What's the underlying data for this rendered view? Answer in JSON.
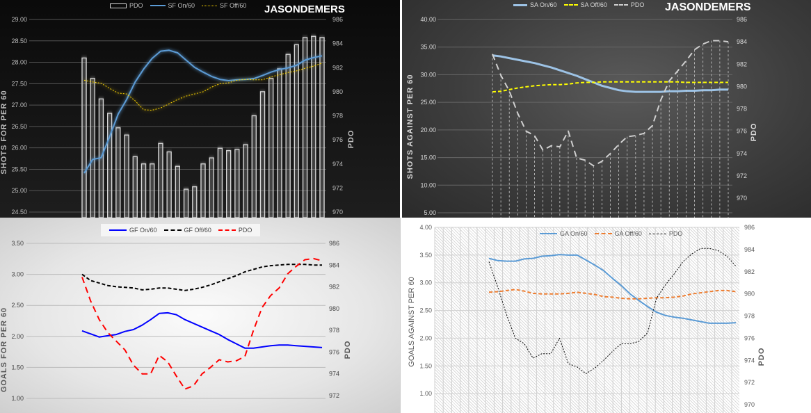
{
  "watermark": "JASONDEMERS",
  "chart_data": [
    {
      "type": "bar+line",
      "title": "",
      "ylabel": "SHOTS FOR PER 60",
      "y2label": "PDO",
      "ylim": [
        24.5,
        29
      ],
      "y2lim": [
        970,
        986
      ],
      "yticks": [
        "24.50",
        "25.00",
        "25.50",
        "26.00",
        "26.50",
        "27.00",
        "27.50",
        "28.00",
        "28.50",
        "29.00"
      ],
      "y2ticks": [
        "970",
        "972",
        "974",
        "976",
        "978",
        "980",
        "982",
        "984",
        "986"
      ],
      "legend": [
        "PDO",
        "SF On/60",
        "SF Off/60"
      ],
      "colors": {
        "pdo": "#d9d9d9",
        "on": "#5b9bd5",
        "off": "#ffd700"
      },
      "series": [
        {
          "name": "PDO",
          "axis": "right",
          "style": "bar",
          "values": [
            982.8,
            981.1,
            979.4,
            978.2,
            977.0,
            976.4,
            974.6,
            974.0,
            974.0,
            975.7,
            975.0,
            973.8,
            971.9,
            972.1,
            974.0,
            974.5,
            975.3,
            975.1,
            975.2,
            975.6,
            978.0,
            980.0,
            981.1,
            981.9,
            983.1,
            983.9,
            984.5,
            984.6,
            984.5
          ]
        },
        {
          "name": "SF On/60",
          "axis": "left",
          "style": "solid",
          "values": [
            25.41,
            25.73,
            25.77,
            26.26,
            26.79,
            27.13,
            27.54,
            27.84,
            28.09,
            28.26,
            28.28,
            28.22,
            28.05,
            27.88,
            27.77,
            27.67,
            27.6,
            27.57,
            27.59,
            27.6,
            27.62,
            27.69,
            27.77,
            27.83,
            27.87,
            27.93,
            28.05,
            28.11,
            28.15
          ]
        },
        {
          "name": "SF Off/60",
          "axis": "left",
          "style": "dotted",
          "values": [
            27.58,
            27.54,
            27.51,
            27.39,
            27.28,
            27.26,
            27.1,
            26.89,
            26.88,
            26.93,
            27.03,
            27.13,
            27.21,
            27.26,
            27.31,
            27.42,
            27.5,
            27.52,
            27.58,
            27.6,
            27.59,
            27.59,
            27.66,
            27.71,
            27.76,
            27.8,
            27.86,
            27.91,
            27.98
          ]
        }
      ]
    },
    {
      "type": "line",
      "title": "",
      "ylabel": "SHOTS AGAINST PER 60",
      "y2label": "PDO",
      "ylim": [
        5,
        40
      ],
      "y2lim": [
        970,
        986
      ],
      "yticks": [
        "5.00",
        "10.00",
        "15.00",
        "20.00",
        "25.00",
        "30.00",
        "35.00",
        "40.00"
      ],
      "y2ticks": [
        "970",
        "972",
        "974",
        "976",
        "978",
        "980",
        "982",
        "984",
        "986"
      ],
      "legend": [
        "SA On/60",
        "SA Off/60",
        "PDO"
      ],
      "colors": {
        "pdo": "#d0d0d0",
        "on": "#9dc3e6",
        "off": "#ffff00"
      },
      "series": [
        {
          "name": "SA On/60",
          "axis": "left",
          "style": "solid",
          "values": [
            33.5,
            33.3,
            33.0,
            32.7,
            32.4,
            32.1,
            31.7,
            31.3,
            30.8,
            30.3,
            29.8,
            29.2,
            28.6,
            28.0,
            27.6,
            27.2,
            27.0,
            26.9,
            26.9,
            26.9,
            26.9,
            27.0,
            27.0,
            27.1,
            27.1,
            27.2,
            27.2,
            27.3,
            27.3
          ]
        },
        {
          "name": "SA Off/60",
          "axis": "left",
          "style": "dashed",
          "values": [
            26.9,
            27.0,
            27.3,
            27.6,
            27.8,
            28.0,
            28.1,
            28.2,
            28.2,
            28.3,
            28.5,
            28.6,
            28.6,
            28.7,
            28.7,
            28.7,
            28.7,
            28.7,
            28.7,
            28.7,
            28.7,
            28.7,
            28.7,
            28.6,
            28.6,
            28.6,
            28.6,
            28.6,
            28.6
          ]
        },
        {
          "name": "PDO",
          "axis": "right",
          "style": "longdash",
          "values": [
            982.9,
            981.0,
            979.6,
            977.6,
            976.0,
            975.6,
            974.3,
            974.7,
            974.6,
            976.0,
            973.6,
            973.4,
            972.9,
            973.3,
            974.0,
            974.8,
            975.5,
            975.6,
            975.8,
            976.5,
            978.8,
            980.5,
            981.4,
            982.3,
            983.3,
            983.8,
            984.1,
            984.1,
            984.0
          ]
        }
      ]
    },
    {
      "type": "line",
      "title": "",
      "ylabel": "GOALS FOR PER 60",
      "y2label": "PDO",
      "ylim": [
        1,
        3.5
      ],
      "y2lim": [
        972,
        986
      ],
      "yticks": [
        "1.00",
        "1.50",
        "2.00",
        "2.50",
        "3.00",
        "3.50"
      ],
      "y2ticks": [
        "972",
        "974",
        "976",
        "978",
        "980",
        "982",
        "984",
        "986"
      ],
      "legend": [
        "GF On/60",
        "GF Off/60",
        "PDO"
      ],
      "colors": {
        "pdo": "#ff0000",
        "on": "#0000ff",
        "off": "#000000"
      },
      "series": [
        {
          "name": "GF On/60",
          "axis": "left",
          "style": "solid",
          "values": [
            2.09,
            2.04,
            1.99,
            2.01,
            2.03,
            2.08,
            2.11,
            2.18,
            2.27,
            2.37,
            2.38,
            2.35,
            2.27,
            2.21,
            2.15,
            2.09,
            2.03,
            1.95,
            1.88,
            1.81,
            1.81,
            1.83,
            1.85,
            1.86,
            1.86,
            1.85,
            1.84,
            1.83,
            1.82
          ]
        },
        {
          "name": "GF Off/60",
          "axis": "left",
          "style": "dashed",
          "values": [
            3.0,
            2.9,
            2.86,
            2.82,
            2.8,
            2.79,
            2.78,
            2.75,
            2.76,
            2.78,
            2.78,
            2.76,
            2.74,
            2.76,
            2.79,
            2.83,
            2.88,
            2.93,
            2.98,
            3.04,
            3.08,
            3.12,
            3.14,
            3.15,
            3.16,
            3.16,
            3.16,
            3.15,
            3.15
          ]
        },
        {
          "name": "PDO",
          "axis": "right",
          "style": "longdash",
          "values": [
            982.9,
            980.7,
            979.0,
            977.8,
            977.0,
            976.2,
            974.8,
            974.0,
            974.0,
            975.7,
            975.1,
            973.8,
            972.6,
            972.9,
            974.0,
            974.6,
            975.3,
            975.1,
            975.2,
            975.6,
            978.0,
            980.1,
            981.2,
            981.9,
            983.2,
            983.9,
            984.5,
            984.6,
            984.4
          ]
        }
      ]
    },
    {
      "type": "line",
      "title": "",
      "ylabel": "GOALS AGAINST PER 60",
      "y2label": "PDO",
      "ylim": [
        0.5,
        4
      ],
      "y2lim": [
        970,
        986
      ],
      "yticks": [
        "1.00",
        "1.50",
        "2.00",
        "2.50",
        "3.00",
        "3.50",
        "4.00"
      ],
      "y2ticks": [
        "970",
        "972",
        "974",
        "976",
        "978",
        "980",
        "982",
        "984",
        "986"
      ],
      "legend": [
        "GA On/60",
        "GA Off/60",
        "PDO"
      ],
      "colors": {
        "pdo": "#000000",
        "on": "#5b9bd5",
        "off": "#ed7d31"
      },
      "series": [
        {
          "name": "GA On/60",
          "axis": "left",
          "style": "solid",
          "values": [
            3.44,
            3.4,
            3.39,
            3.39,
            3.43,
            3.44,
            3.48,
            3.49,
            3.51,
            3.5,
            3.5,
            3.41,
            3.32,
            3.22,
            3.08,
            2.95,
            2.8,
            2.68,
            2.57,
            2.47,
            2.41,
            2.38,
            2.36,
            2.33,
            2.3,
            2.27,
            2.27,
            2.27,
            2.28
          ]
        },
        {
          "name": "GA Off/60",
          "axis": "left",
          "style": "dashed",
          "values": [
            2.83,
            2.84,
            2.86,
            2.88,
            2.85,
            2.81,
            2.8,
            2.8,
            2.8,
            2.81,
            2.83,
            2.81,
            2.79,
            2.75,
            2.74,
            2.72,
            2.71,
            2.71,
            2.72,
            2.73,
            2.73,
            2.74,
            2.76,
            2.8,
            2.82,
            2.84,
            2.86,
            2.86,
            2.84
          ]
        },
        {
          "name": "PDO",
          "axis": "right",
          "style": "dotted",
          "values": [
            982.9,
            980.6,
            978.1,
            976.0,
            975.5,
            974.2,
            974.6,
            974.6,
            976.0,
            973.7,
            973.4,
            972.8,
            973.3,
            974.0,
            974.8,
            975.5,
            975.5,
            975.7,
            976.5,
            979.6,
            980.8,
            981.8,
            982.9,
            983.6,
            984.1,
            984.1,
            983.9,
            983.4,
            982.5
          ]
        }
      ]
    }
  ]
}
